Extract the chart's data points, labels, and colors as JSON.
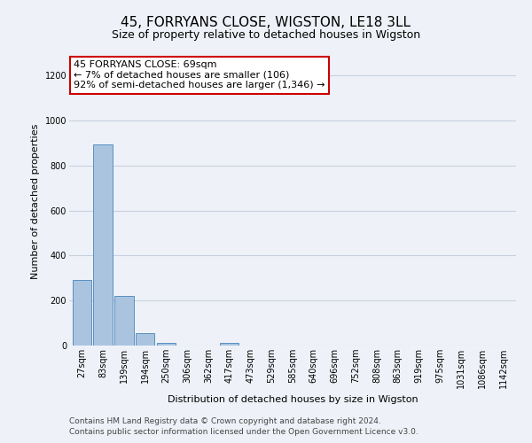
{
  "title": "45, FORRYANS CLOSE, WIGSTON, LE18 3LL",
  "subtitle": "Size of property relative to detached houses in Wigston",
  "xlabel": "Distribution of detached houses by size in Wigston",
  "ylabel": "Number of detached properties",
  "categories": [
    "27sqm",
    "83sqm",
    "139sqm",
    "194sqm",
    "250sqm",
    "306sqm",
    "362sqm",
    "417sqm",
    "473sqm",
    "529sqm",
    "585sqm",
    "640sqm",
    "696sqm",
    "752sqm",
    "808sqm",
    "863sqm",
    "919sqm",
    "975sqm",
    "1031sqm",
    "1086sqm",
    "1142sqm"
  ],
  "bar_values": [
    290,
    895,
    220,
    55,
    10,
    0,
    0,
    10,
    0,
    0,
    0,
    0,
    0,
    0,
    0,
    0,
    0,
    0,
    0,
    0,
    0
  ],
  "bar_color": "#aac4e0",
  "bar_edge_color": "#5a8fc0",
  "ylim": [
    0,
    1280
  ],
  "yticks": [
    0,
    200,
    400,
    600,
    800,
    1000,
    1200
  ],
  "annotation_text": "45 FORRYANS CLOSE: 69sqm\n← 7% of detached houses are smaller (106)\n92% of semi-detached houses are larger (1,346) →",
  "annotation_box_color": "#ffffff",
  "annotation_box_edge_color": "#cc0000",
  "footer_line1": "Contains HM Land Registry data © Crown copyright and database right 2024.",
  "footer_line2": "Contains public sector information licensed under the Open Government Licence v3.0.",
  "background_color": "#eef2f8",
  "grid_color": "#c8d0e0",
  "title_fontsize": 11,
  "subtitle_fontsize": 9,
  "axis_label_fontsize": 8,
  "tick_fontsize": 7,
  "footer_fontsize": 6.5,
  "annotation_fontsize": 8
}
